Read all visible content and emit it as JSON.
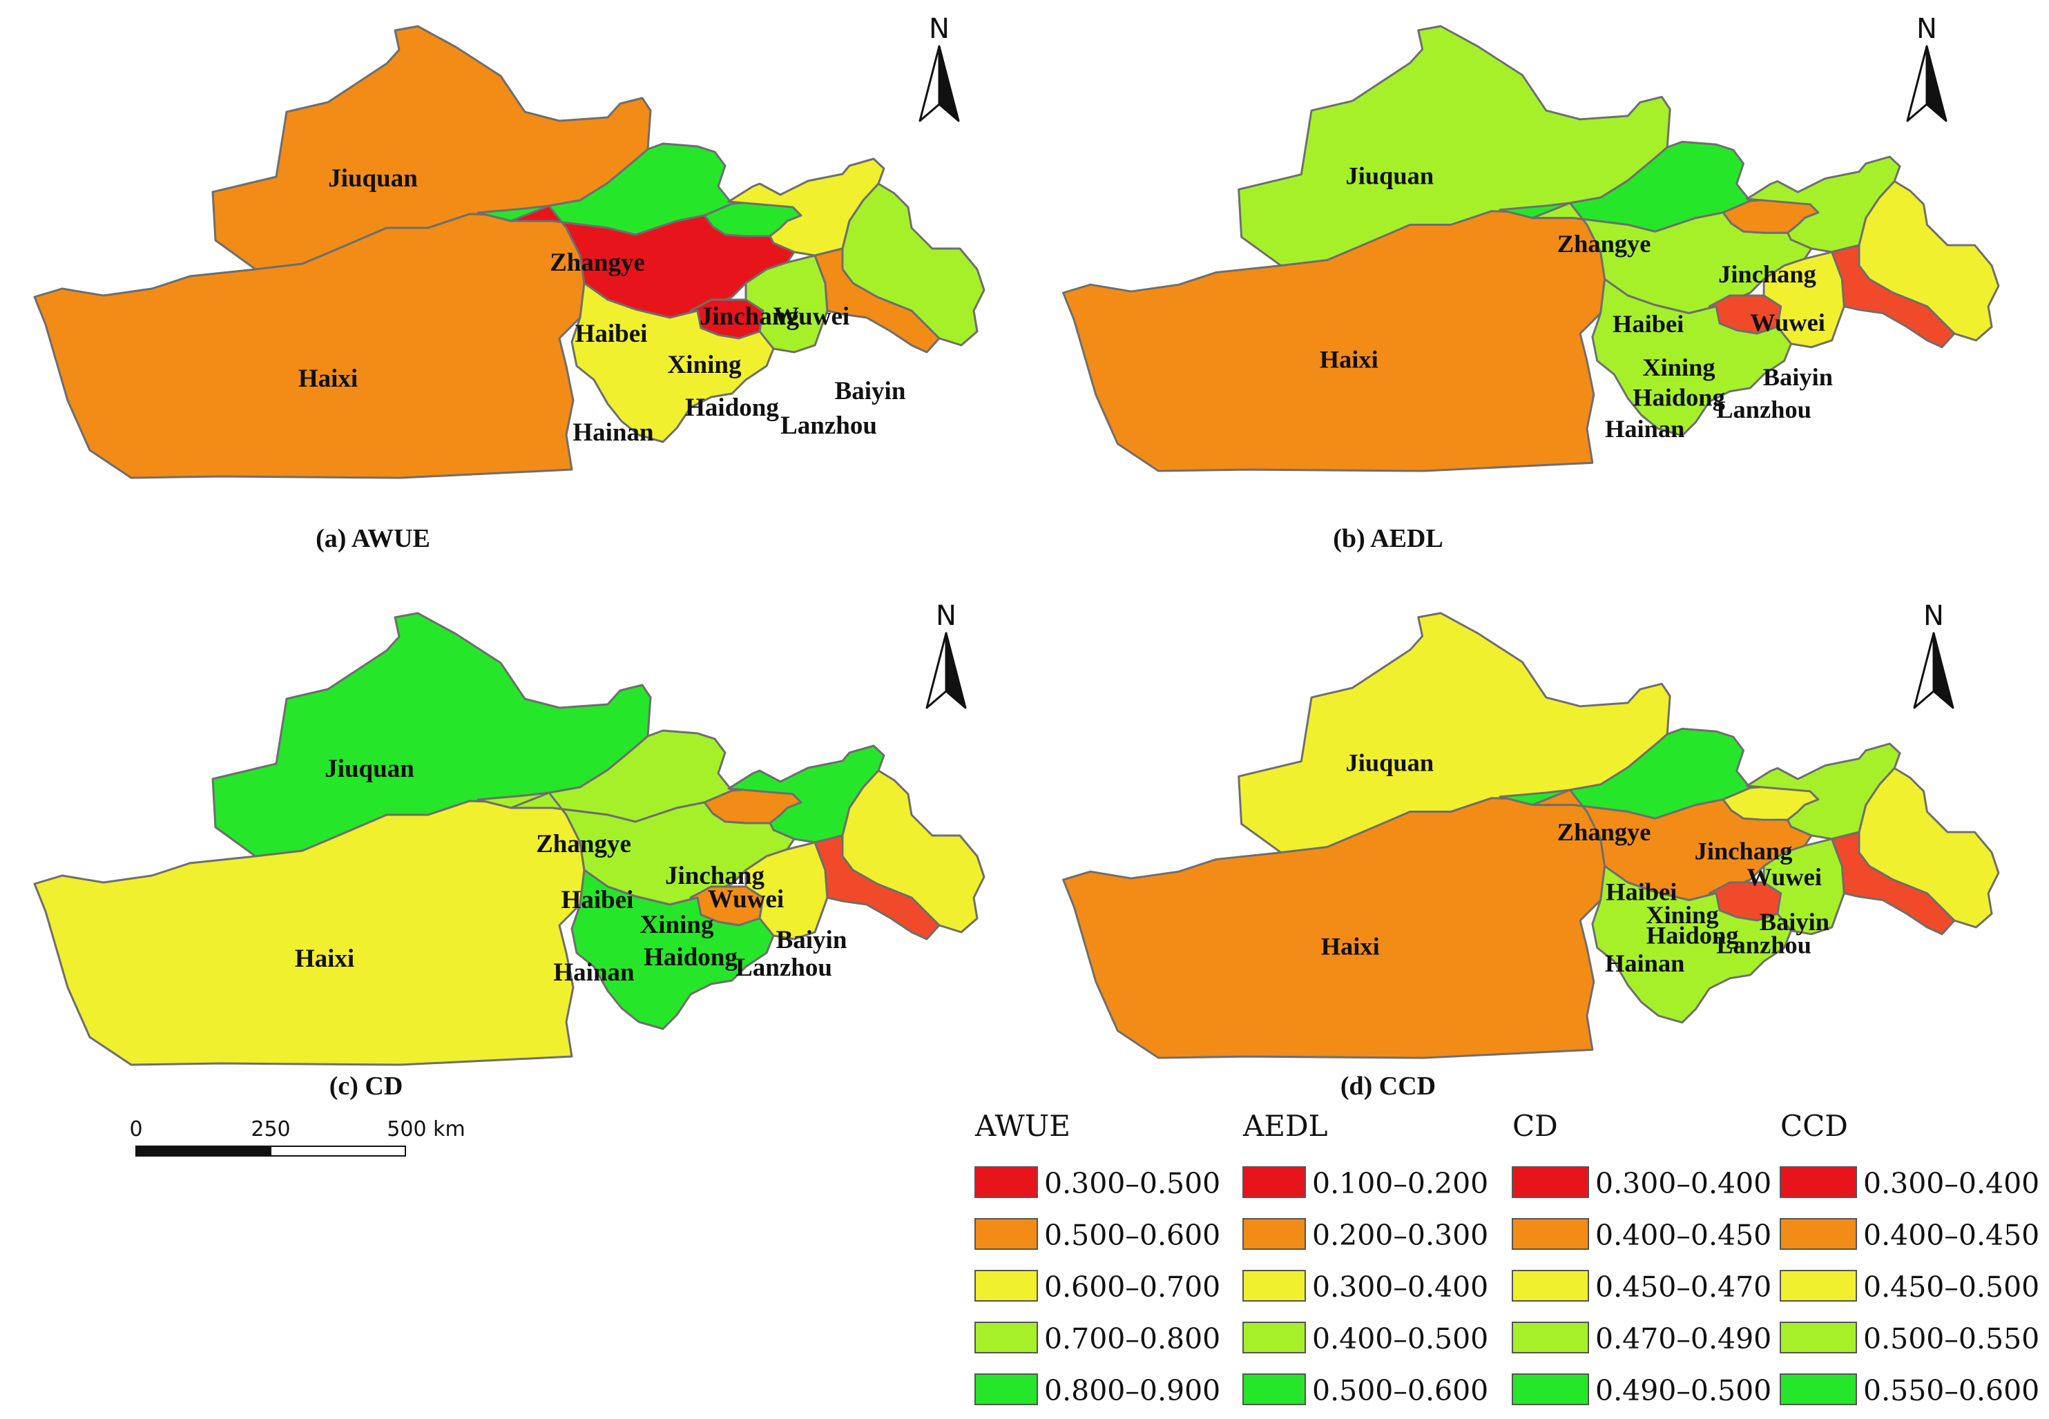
{
  "colors": {
    "red": "#e8141c",
    "orange": "#f28c16",
    "yellow": "#f0f02e",
    "lightgreen": "#a6f02a",
    "green": "#26e62a",
    "redorange": "#f04a2a"
  },
  "city_names": [
    "Jiuquan",
    "Haixi",
    "Zhangye",
    "Jinchang",
    "Wuwei",
    "Haibei",
    "Xining",
    "Haidong",
    "Hainan",
    "Baiyin",
    "Lanzhou"
  ],
  "panels": [
    {
      "caption": "(a)  AWUE",
      "fills": {
        "Jiuquan": "orange",
        "Haixi": "orange",
        "Zhangye": "green",
        "Jinchang": "green",
        "Wuwei": "yellow",
        "Haibei": "red",
        "Xining": "red",
        "Haidong": "lightgreen",
        "Hainan": "yellow",
        "Baiyin": "lightgreen",
        "Lanzhou": "orange"
      }
    },
    {
      "caption": "(b)  AEDL",
      "fills": {
        "Jiuquan": "lightgreen",
        "Haixi": "orange",
        "Zhangye": "green",
        "Jinchang": "orange",
        "Wuwei": "lightgreen",
        "Haibei": "lightgreen",
        "Xining": "redorange",
        "Haidong": "yellow",
        "Hainan": "lightgreen",
        "Baiyin": "yellow",
        "Lanzhou": "redorange"
      }
    },
    {
      "caption": "(c)  CD",
      "fills": {
        "Jiuquan": "green",
        "Haixi": "yellow",
        "Zhangye": "lightgreen",
        "Jinchang": "orange",
        "Wuwei": "green",
        "Haibei": "lightgreen",
        "Xining": "orange",
        "Haidong": "yellow",
        "Hainan": "green",
        "Baiyin": "yellow",
        "Lanzhou": "redorange"
      }
    },
    {
      "caption": "(d)  CCD",
      "fills": {
        "Jiuquan": "yellow",
        "Haixi": "orange",
        "Zhangye": "green",
        "Jinchang": "yellow",
        "Wuwei": "lightgreen",
        "Haibei": "orange",
        "Xining": "redorange",
        "Haidong": "lightgreen",
        "Hainan": "lightgreen",
        "Baiyin": "yellow",
        "Lanzhou": "redorange"
      }
    }
  ],
  "north_label": "N",
  "scale_bar": {
    "labels": [
      "0",
      "250",
      "500 km"
    ]
  },
  "legend": [
    {
      "title": "AWUE",
      "items": [
        {
          "range": "0.300–0.500",
          "color": "red"
        },
        {
          "range": "0.500–0.600",
          "color": "orange"
        },
        {
          "range": "0.600–0.700",
          "color": "yellow"
        },
        {
          "range": "0.700–0.800",
          "color": "lightgreen"
        },
        {
          "range": "0.800–0.900",
          "color": "green"
        }
      ]
    },
    {
      "title": "AEDL",
      "items": [
        {
          "range": "0.100–0.200",
          "color": "red"
        },
        {
          "range": "0.200–0.300",
          "color": "orange"
        },
        {
          "range": "0.300–0.400",
          "color": "yellow"
        },
        {
          "range": "0.400–0.500",
          "color": "lightgreen"
        },
        {
          "range": "0.500–0.600",
          "color": "green"
        }
      ]
    },
    {
      "title": "CD",
      "items": [
        {
          "range": "0.300–0.400",
          "color": "red"
        },
        {
          "range": "0.400–0.450",
          "color": "orange"
        },
        {
          "range": "0.450–0.470",
          "color": "yellow"
        },
        {
          "range": "0.470–0.490",
          "color": "lightgreen"
        },
        {
          "range": "0.490–0.500",
          "color": "green"
        }
      ]
    },
    {
      "title": "CCD",
      "items": [
        {
          "range": "0.300–0.400",
          "color": "red"
        },
        {
          "range": "0.400–0.450",
          "color": "orange"
        },
        {
          "range": "0.450–0.500",
          "color": "yellow"
        },
        {
          "range": "0.500–0.550",
          "color": "lightgreen"
        },
        {
          "range": "0.550–0.600",
          "color": "green"
        }
      ]
    }
  ]
}
